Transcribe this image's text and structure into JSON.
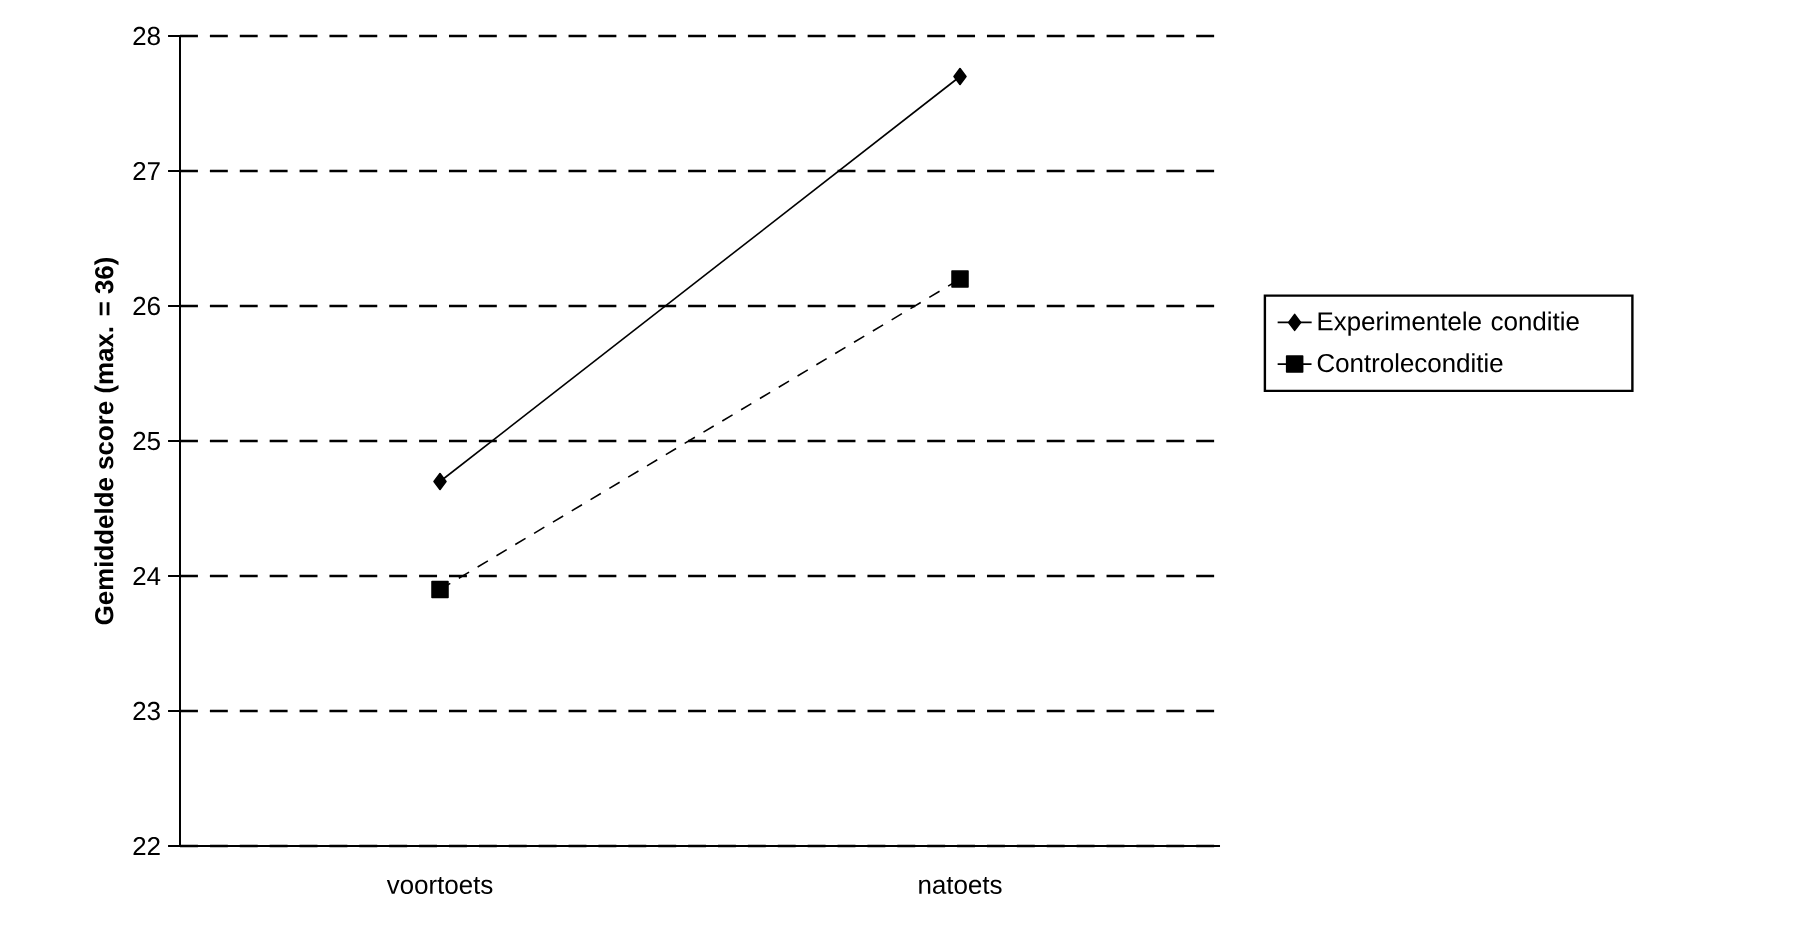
{
  "chart_data": {
    "type": "line",
    "ylabel": "Gemiddelde score (max. = 36)",
    "categories": [
      "voortoets",
      "natoets"
    ],
    "series": [
      {
        "name": "Experimentele conditie",
        "color": "#000000",
        "values": [
          24.7,
          27.7
        ],
        "marker": "diamond",
        "line_style": "solid"
      },
      {
        "name": "Controleconditie",
        "color": "#000000",
        "values": [
          23.9,
          26.2
        ],
        "marker": "square",
        "line_style": "dashed"
      }
    ],
    "ylim": [
      22,
      28
    ],
    "yticks": [
      22,
      23,
      24,
      25,
      26,
      27,
      28
    ],
    "grid": "y",
    "legend": "right"
  }
}
